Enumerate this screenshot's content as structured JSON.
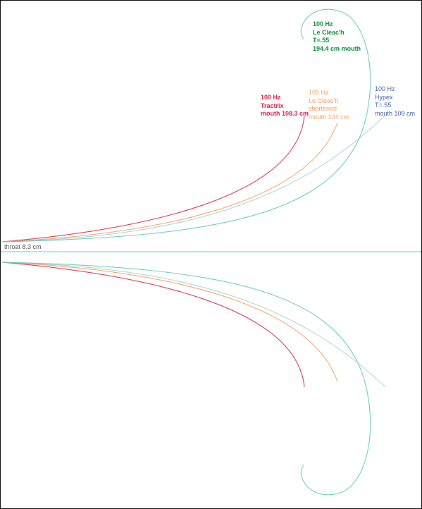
{
  "axis": {
    "color": "#55cce0"
  },
  "throat_label": "throat 8.3 cm",
  "horns": [
    {
      "id": "tractrix",
      "color": "#d4204a",
      "label_lines": [
        "100 Hz",
        "Tractrix",
        "mouth 108.3 cm"
      ]
    },
    {
      "id": "leclEach-shortened",
      "color": "#f0a060",
      "label_lines": [
        "105 Hz",
        "Le Cleac'h",
        "shortened",
        "mouth 104 cm"
      ]
    },
    {
      "id": "hypex",
      "color": "#8fcac0",
      "label_color": "#3a5aa8",
      "label_lines": [
        "100 Hz",
        "Hypex",
        "T=.55",
        "mouth 109 cm"
      ]
    },
    {
      "id": "leclEach",
      "color": "#5cc8b4",
      "label_color": "#0a8a3a",
      "label_lines": [
        "100 Hz",
        "Le Cleac'h",
        "T=.55",
        "194.4 cm mouth"
      ]
    }
  ]
}
